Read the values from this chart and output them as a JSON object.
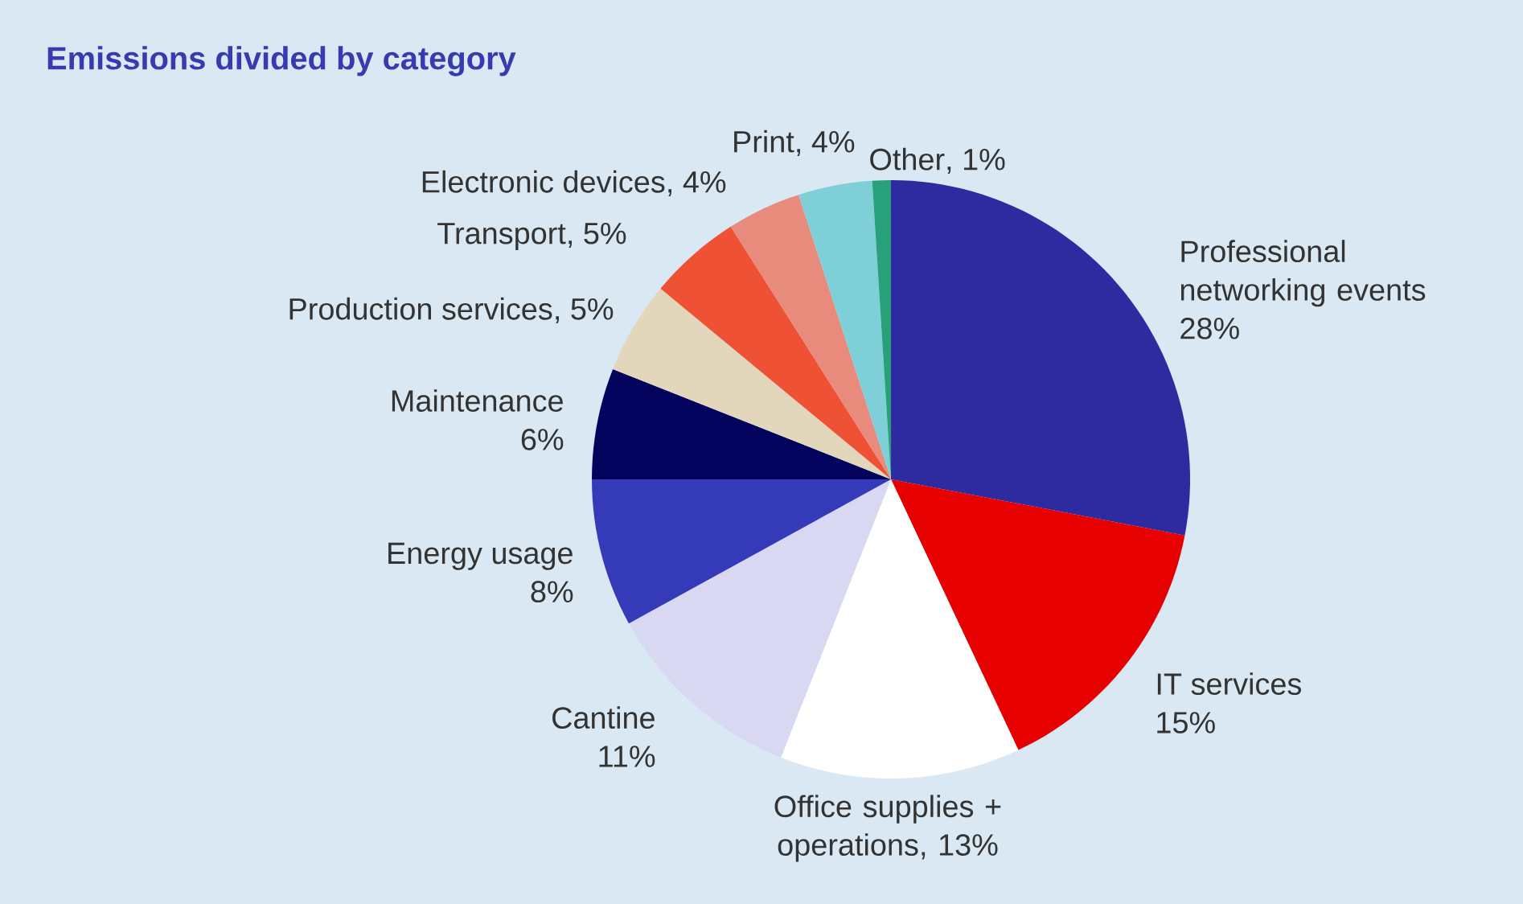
{
  "chart_data": {
    "type": "pie",
    "title": "Emissions divided by category",
    "categories": [
      "Professional networking events",
      "IT services",
      "Office supplies + operations",
      "Cantine",
      "Energy usage",
      "Maintenance",
      "Production services",
      "Transport",
      "Electronic devices",
      "Print",
      "Other"
    ],
    "values": [
      28,
      15,
      13,
      11,
      8,
      6,
      5,
      5,
      4,
      4,
      1
    ],
    "value_labels": [
      "28%",
      "15%",
      ", 13%",
      "11%",
      "8%",
      "6%",
      ", 5%",
      ", 5%",
      ", 4%",
      ", 4%",
      ", 1%"
    ],
    "colors": [
      "#2e2ba0",
      "#e60000",
      "#ffffff",
      "#d8d8f2",
      "#343ab8",
      "#03035e",
      "#e2d6bb",
      "#ee5133",
      "#e88a7c",
      "#7fcfd8",
      "#28a07a"
    ],
    "data_labels": true
  }
}
